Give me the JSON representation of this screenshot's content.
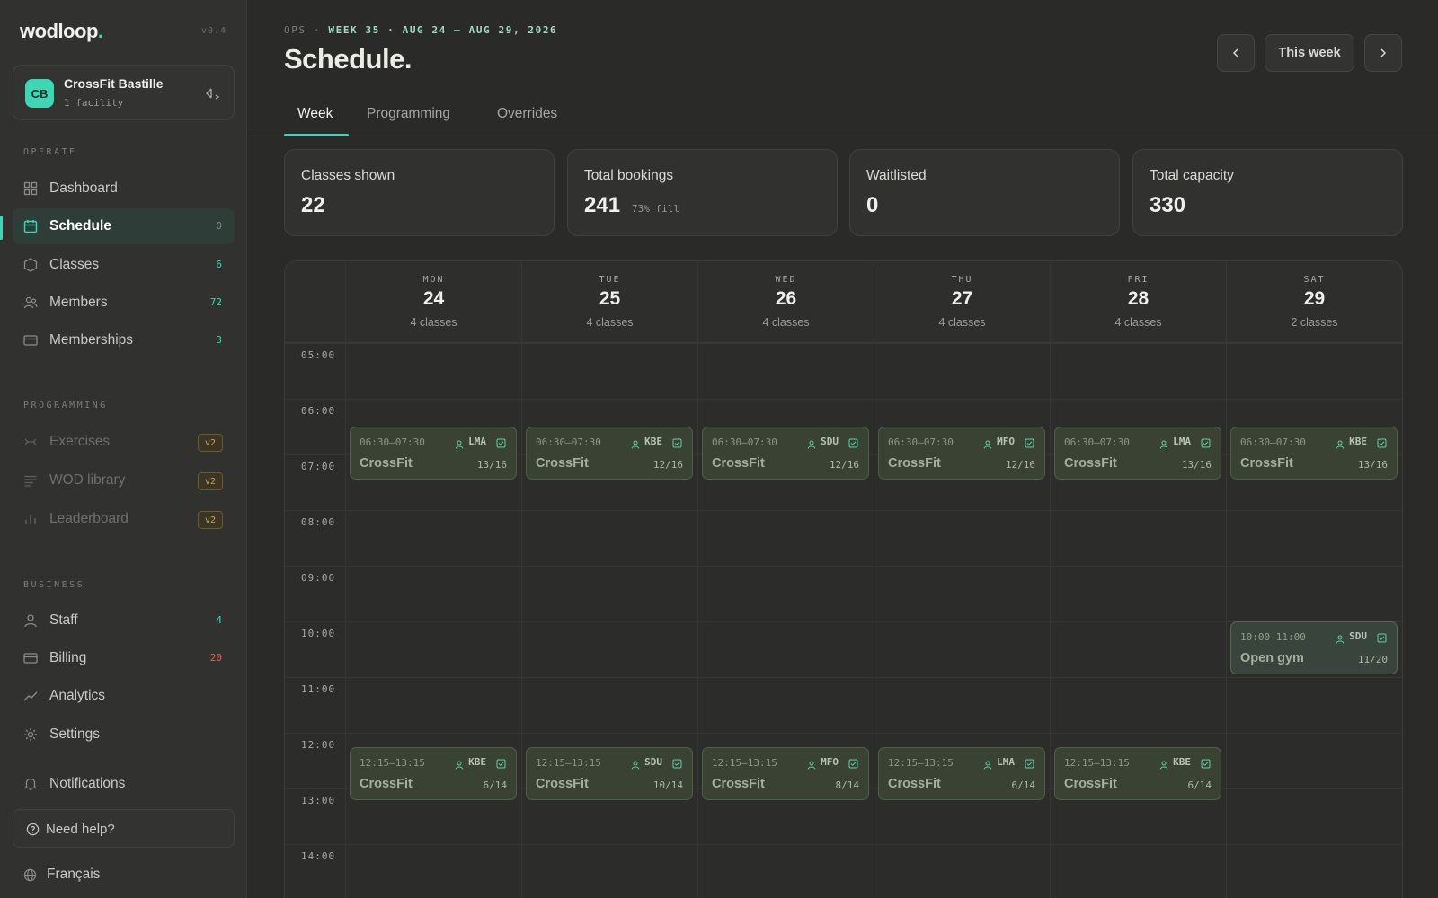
{
  "app": {
    "name": "wodloop",
    "name_dot": ".",
    "version": "v0.4"
  },
  "facility": {
    "initials": "CB",
    "name": "CrossFit Bastille",
    "subtitle": "1 facility"
  },
  "sidebar": {
    "sections": {
      "operate": "OPERATE",
      "programming": "PROGRAMMING",
      "business": "BUSINESS"
    },
    "operate_items": [
      {
        "label": "Dashboard",
        "count": ""
      },
      {
        "label": "Schedule",
        "count": "0"
      },
      {
        "label": "Classes",
        "count": "6"
      },
      {
        "label": "Members",
        "count": "72"
      },
      {
        "label": "Memberships",
        "count": "3"
      }
    ],
    "programming_items": [
      {
        "label": "Exercises",
        "badge": "v2"
      },
      {
        "label": "WOD library",
        "badge": "v2"
      },
      {
        "label": "Leaderboard",
        "badge": "v2"
      }
    ],
    "business_items": [
      {
        "label": "Staff",
        "count": "4"
      },
      {
        "label": "Billing",
        "count": "20"
      },
      {
        "label": "Analytics",
        "count": ""
      },
      {
        "label": "Settings",
        "count": ""
      }
    ],
    "notifications": "Notifications",
    "help": "Need help?",
    "language": "Français"
  },
  "header": {
    "crumb_ops": "OPS",
    "crumb_sep": "·",
    "crumb_week": "WEEK 35 · AUG 24 – AUG 29, 2026",
    "title": "Schedule.",
    "this_week": "This week"
  },
  "tabs": [
    "Week",
    "Programming",
    "Overrides"
  ],
  "stats": [
    {
      "label": "Classes shown",
      "value": "22",
      "sub": ""
    },
    {
      "label": "Total bookings",
      "value": "241",
      "sub": "73% fill"
    },
    {
      "label": "Waitlisted",
      "value": "0",
      "sub": ""
    },
    {
      "label": "Total capacity",
      "value": "330",
      "sub": ""
    }
  ],
  "calendar": {
    "days": [
      {
        "dow": "MON",
        "date": "24",
        "count": "4 classes"
      },
      {
        "dow": "TUE",
        "date": "25",
        "count": "4 classes"
      },
      {
        "dow": "WED",
        "date": "26",
        "count": "4 classes"
      },
      {
        "dow": "THU",
        "date": "27",
        "count": "4 classes"
      },
      {
        "dow": "FRI",
        "date": "28",
        "count": "4 classes"
      },
      {
        "dow": "SAT",
        "date": "29",
        "count": "2 classes"
      }
    ],
    "hours": [
      "05:00",
      "06:00",
      "07:00",
      "08:00",
      "09:00",
      "10:00",
      "11:00",
      "12:00",
      "13:00",
      "14:00"
    ],
    "events": [
      {
        "day": 0,
        "start": "06:30",
        "time": "06:30–07:30",
        "coach": "LMA",
        "name": "CrossFit",
        "capacity": "13/16"
      },
      {
        "day": 1,
        "start": "06:30",
        "time": "06:30–07:30",
        "coach": "KBE",
        "name": "CrossFit",
        "capacity": "12/16"
      },
      {
        "day": 2,
        "start": "06:30",
        "time": "06:30–07:30",
        "coach": "SDU",
        "name": "CrossFit",
        "capacity": "12/16"
      },
      {
        "day": 3,
        "start": "06:30",
        "time": "06:30–07:30",
        "coach": "MFO",
        "name": "CrossFit",
        "capacity": "12/16"
      },
      {
        "day": 4,
        "start": "06:30",
        "time": "06:30–07:30",
        "coach": "LMA",
        "name": "CrossFit",
        "capacity": "13/16"
      },
      {
        "day": 5,
        "start": "06:30",
        "time": "06:30–07:30",
        "coach": "KBE",
        "name": "CrossFit",
        "capacity": "13/16"
      },
      {
        "day": 5,
        "start": "10:00",
        "time": "10:00–11:00",
        "coach": "SDU",
        "name": "Open gym",
        "capacity": "11/20"
      },
      {
        "day": 0,
        "start": "12:15",
        "time": "12:15–13:15",
        "coach": "KBE",
        "name": "CrossFit",
        "capacity": "6/14"
      },
      {
        "day": 1,
        "start": "12:15",
        "time": "12:15–13:15",
        "coach": "SDU",
        "name": "CrossFit",
        "capacity": "10/14"
      },
      {
        "day": 2,
        "start": "12:15",
        "time": "12:15–13:15",
        "coach": "MFO",
        "name": "CrossFit",
        "capacity": "8/14"
      },
      {
        "day": 3,
        "start": "12:15",
        "time": "12:15–13:15",
        "coach": "LMA",
        "name": "CrossFit",
        "capacity": "6/14"
      },
      {
        "day": 4,
        "start": "12:15",
        "time": "12:15–13:15",
        "coach": "KBE",
        "name": "CrossFit",
        "capacity": "6/14"
      }
    ]
  },
  "colors": {
    "accent": "#3fd6b6",
    "alert": "#e2674d",
    "badge": "#c9a554"
  }
}
